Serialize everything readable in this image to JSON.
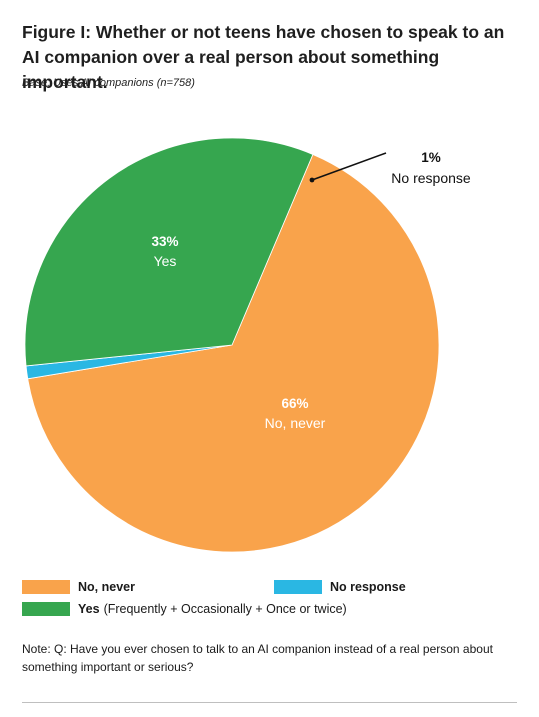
{
  "title": "Figure I: Whether or not teens have chosen to speak to an AI companion over a real person about something important.",
  "base": "Base: Uses AI companions (n=758)",
  "chart_data": {
    "type": "pie",
    "title": "Figure I: Whether or not teens have chosen to speak to an AI companion over a real person about something important.",
    "slices": [
      {
        "label": "No, never",
        "value": 66,
        "display": "66%",
        "color": "#f9a34b"
      },
      {
        "label": "No response",
        "value": 1,
        "display": "1%",
        "color": "#2ab7e3"
      },
      {
        "label": "Yes",
        "value": 33,
        "display": "33%",
        "color": "#36a64f"
      }
    ],
    "legend": [
      {
        "label": "No, never",
        "detail": "",
        "color": "#f9a34b"
      },
      {
        "label": "No response",
        "detail": "",
        "color": "#2ab7e3"
      },
      {
        "label": "Yes",
        "detail": "(Frequently + Occasionally + Once or twice)",
        "color": "#36a64f"
      }
    ],
    "legend_position": "bottom"
  },
  "note": "Note: Q: Have you ever chosen to talk to an AI companion instead of a real person about something important or serious?"
}
